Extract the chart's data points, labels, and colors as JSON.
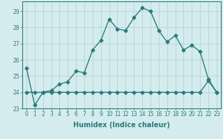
{
  "xlabel": "Humidex (Indice chaleur)",
  "x": [
    0,
    1,
    2,
    3,
    4,
    5,
    6,
    7,
    8,
    9,
    10,
    11,
    12,
    13,
    14,
    15,
    16,
    17,
    18,
    19,
    20,
    21,
    22,
    23
  ],
  "line1_y": [
    25.5,
    23.2,
    24.0,
    24.1,
    24.5,
    24.65,
    25.3,
    25.2,
    26.6,
    27.2,
    28.5,
    27.9,
    27.8,
    28.6,
    29.2,
    29.0,
    27.8,
    27.1,
    27.5,
    26.6,
    26.9,
    26.5,
    24.8,
    24.0
  ],
  "line2_y": [
    24.0,
    24.0,
    24.0,
    24.0,
    24.0,
    24.0,
    24.0,
    24.0,
    24.0,
    24.0,
    24.0,
    24.0,
    24.0,
    24.0,
    24.0,
    24.0,
    24.0,
    24.0,
    24.0,
    24.0,
    24.0,
    24.0,
    24.7,
    24.0
  ],
  "line_color": "#2a7b7b",
  "bg_color": "#d5ecee",
  "grid_color": "#aecdd0",
  "ylim": [
    23,
    29.6
  ],
  "yticks": [
    23,
    24,
    25,
    26,
    27,
    28,
    29
  ],
  "xticks": [
    0,
    1,
    2,
    3,
    4,
    5,
    6,
    7,
    8,
    9,
    10,
    11,
    12,
    13,
    14,
    15,
    16,
    17,
    18,
    19,
    20,
    21,
    22,
    23
  ],
  "marker": "D",
  "markersize": 2.5,
  "linewidth": 1.0,
  "label_fontsize": 7,
  "tick_fontsize": 5.5
}
